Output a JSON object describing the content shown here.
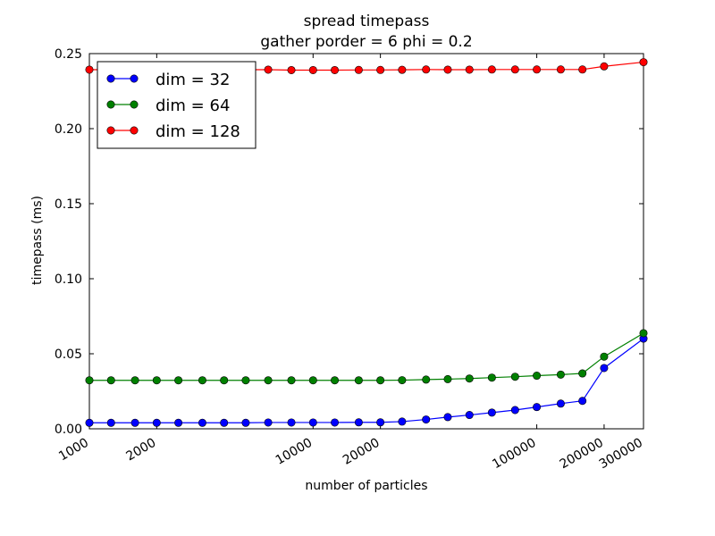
{
  "chart_data": {
    "type": "line",
    "title": "spread timepass",
    "subtitle": "gather porder = 6 phi = 0.2",
    "xlabel": "number of particles",
    "ylabel": "timepass (ms)",
    "xscale": "log",
    "ylim": [
      0.0,
      0.25
    ],
    "yticks": [
      "0.00",
      "0.05",
      "0.10",
      "0.15",
      "0.20",
      "0.25"
    ],
    "ytick_values": [
      0.0,
      0.05,
      0.1,
      0.15,
      0.2,
      0.25
    ],
    "xticks": [
      "1000",
      "2000",
      "10000",
      "20000",
      "100000",
      "200000",
      "300000"
    ],
    "xtick_values": [
      1000,
      2000,
      10000,
      20000,
      100000,
      200000,
      300000
    ],
    "legend_position": "upper-left",
    "grid": false,
    "x": [
      1000,
      1250,
      1600,
      2000,
      2500,
      3200,
      4000,
      5000,
      6300,
      8000,
      10000,
      12500,
      16000,
      20000,
      25000,
      32000,
      40000,
      50000,
      63000,
      80000,
      100000,
      128000,
      160000,
      200000,
      300000
    ],
    "series": [
      {
        "name": "dim = 32",
        "color": "#0000ff",
        "values": [
          0.004,
          0.004,
          0.004,
          0.004,
          0.004,
          0.004,
          0.004,
          0.004,
          0.0042,
          0.0042,
          0.0042,
          0.0042,
          0.0043,
          0.0043,
          0.0048,
          0.0062,
          0.0078,
          0.0092,
          0.0108,
          0.0125,
          0.0145,
          0.0168,
          0.0186,
          0.0405,
          0.0601
        ]
      },
      {
        "name": "dim = 64",
        "color": "#008000",
        "values": [
          0.0323,
          0.0323,
          0.0323,
          0.0323,
          0.0323,
          0.0323,
          0.0323,
          0.0323,
          0.0323,
          0.0323,
          0.0323,
          0.0323,
          0.0323,
          0.0323,
          0.0324,
          0.0328,
          0.0331,
          0.0335,
          0.0341,
          0.0347,
          0.0354,
          0.0361,
          0.0369,
          0.0481,
          0.0637
        ]
      },
      {
        "name": "dim = 128",
        "color": "#ff0000",
        "values": [
          0.2393,
          0.2393,
          0.2393,
          0.2393,
          0.2393,
          0.2393,
          0.2393,
          0.2393,
          0.2393,
          0.239,
          0.239,
          0.239,
          0.2391,
          0.2391,
          0.2392,
          0.2394,
          0.2393,
          0.2393,
          0.2394,
          0.2394,
          0.2394,
          0.2394,
          0.2394,
          0.2415,
          0.2443
        ]
      }
    ]
  }
}
